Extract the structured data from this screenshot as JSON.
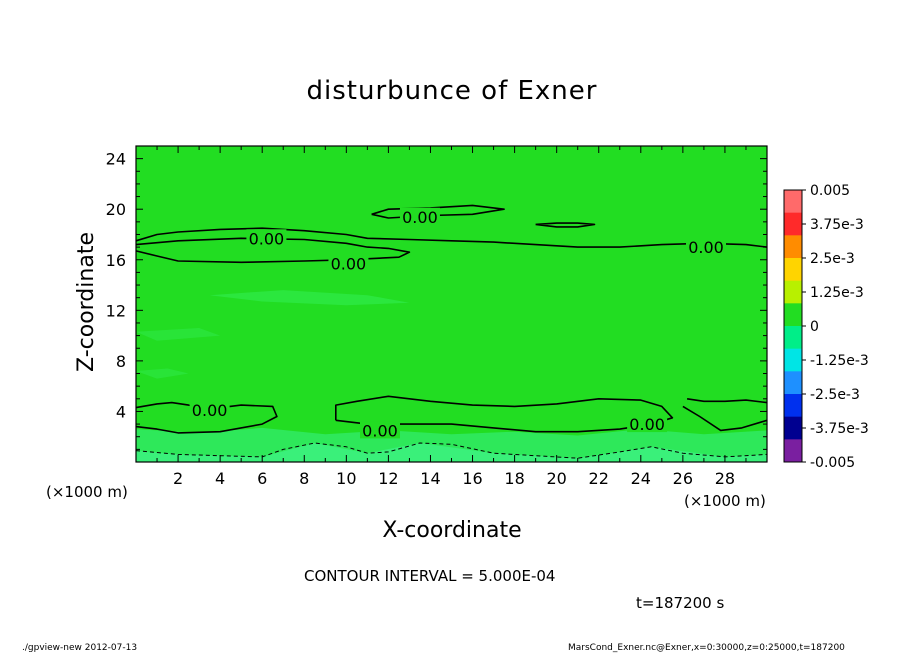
{
  "title": "disturbunce of Exner",
  "contour_interval": "CONTOUR INTERVAL = 5.000E-04",
  "time_label": "t=187200 s",
  "footer_left": "./gpview-new   2012-07-13",
  "footer_right": "MarsCond_Exner.nc@Exner,x=0:30000,z=0:25000,t=187200",
  "colors": {
    "field": "#22dd22",
    "near_zero_negative": "#33ee55",
    "lower_band": "#2ee85a",
    "bottom_band": "#3af07a",
    "contour_line": "#000000"
  },
  "chart_data": {
    "type": "contour",
    "xlabel": "X-coordinate",
    "ylabel": "Z-coordinate",
    "x_unit_left": "(×1000 m)",
    "x_unit_right": "(×1000 m)",
    "xlim": [
      0,
      30
    ],
    "ylim": [
      0,
      25
    ],
    "x_ticks": [
      "2",
      "4",
      "6",
      "8",
      "10",
      "12",
      "14",
      "16",
      "18",
      "20",
      "22",
      "24",
      "26",
      "28"
    ],
    "y_ticks": [
      "4",
      "8",
      "12",
      "16",
      "20",
      "24"
    ],
    "colorbar": {
      "labels": [
        "0.005",
        "3.75e-3",
        "2.5e-3",
        "1.25e-3",
        "0",
        "-1.25e-3",
        "-2.5e-3",
        "-3.75e-3",
        "-0.005"
      ],
      "colors": [
        "#ff6a6a",
        "#ff2a2a",
        "#ff8c00",
        "#ffd400",
        "#b8f000",
        "#22dd22",
        "#00ee88",
        "#00e5e5",
        "#1e90ff",
        "#0030ee",
        "#000090",
        "#7a1fa0"
      ]
    },
    "contour_labels": [
      {
        "text": "0.00",
        "x": 6.2,
        "z": 17.7
      },
      {
        "text": "0.00",
        "x": 13.5,
        "z": 19.4
      },
      {
        "text": "0.00",
        "x": 10.1,
        "z": 15.7
      },
      {
        "text": "0.00",
        "x": 27.1,
        "z": 17.0
      },
      {
        "text": "0.00",
        "x": 3.5,
        "z": 4.1
      },
      {
        "text": "0.00",
        "x": 11.6,
        "z": 2.5
      },
      {
        "text": "0.00",
        "x": 24.3,
        "z": 3.0
      }
    ],
    "contours": [
      {
        "style": "solid",
        "points": [
          [
            0,
            17.5
          ],
          [
            1,
            18.0
          ],
          [
            2,
            18.2
          ],
          [
            4,
            18.4
          ],
          [
            6,
            18.5
          ],
          [
            8,
            18.3
          ],
          [
            10,
            18.0
          ],
          [
            11,
            17.7
          ],
          [
            13,
            17.6
          ],
          [
            15,
            17.5
          ],
          [
            17,
            17.4
          ],
          [
            19,
            17.2
          ],
          [
            21,
            17.0
          ],
          [
            23,
            17.0
          ],
          [
            25,
            17.2
          ],
          [
            27,
            17.3
          ],
          [
            29,
            17.2
          ],
          [
            30,
            17.0
          ]
        ]
      },
      {
        "style": "solid",
        "points": [
          [
            0,
            17.2
          ],
          [
            2,
            17.5
          ],
          [
            5,
            17.7
          ],
          [
            8,
            17.6
          ],
          [
            10,
            17.3
          ],
          [
            11,
            17.0
          ],
          [
            12,
            16.9
          ],
          [
            13,
            16.6
          ],
          [
            12.5,
            16.2
          ],
          [
            10,
            16.0
          ],
          [
            8,
            15.9
          ],
          [
            5,
            15.8
          ],
          [
            2,
            15.9
          ],
          [
            1,
            16.3
          ],
          [
            0,
            16.7
          ]
        ]
      },
      {
        "style": "solid",
        "points": [
          [
            11.2,
            19.6
          ],
          [
            12,
            20.0
          ],
          [
            14,
            20.1
          ],
          [
            16,
            20.3
          ],
          [
            17.5,
            20.0
          ],
          [
            16,
            19.6
          ],
          [
            14,
            19.5
          ],
          [
            12,
            19.3
          ],
          [
            11.2,
            19.6
          ]
        ]
      },
      {
        "style": "solid",
        "points": [
          [
            19,
            18.8
          ],
          [
            20,
            18.9
          ],
          [
            21,
            18.9
          ],
          [
            21.8,
            18.8
          ],
          [
            21,
            18.6
          ],
          [
            20,
            18.6
          ],
          [
            19,
            18.8
          ]
        ]
      },
      {
        "style": "solid",
        "points": [
          [
            0,
            4.3
          ],
          [
            1,
            4.6
          ],
          [
            1.7,
            4.7
          ],
          [
            2.5,
            4.5
          ],
          [
            3.5,
            4.2
          ],
          [
            5,
            4.5
          ],
          [
            6.5,
            4.4
          ],
          [
            6.7,
            3.6
          ],
          [
            6,
            3.0
          ],
          [
            4,
            2.4
          ],
          [
            2,
            2.3
          ],
          [
            1,
            2.6
          ],
          [
            0,
            2.8
          ]
        ]
      },
      {
        "style": "solid",
        "points": [
          [
            9.5,
            3.3
          ],
          [
            9.5,
            4.5
          ],
          [
            10.5,
            4.8
          ],
          [
            12,
            5.2
          ],
          [
            14,
            4.8
          ],
          [
            16,
            4.5
          ],
          [
            18,
            4.4
          ],
          [
            20,
            4.6
          ],
          [
            22,
            5.0
          ],
          [
            24,
            4.9
          ],
          [
            25,
            4.4
          ],
          [
            25.5,
            3.5
          ],
          [
            24.5,
            3.0
          ],
          [
            23,
            2.6
          ],
          [
            21,
            2.4
          ],
          [
            19,
            2.4
          ],
          [
            17,
            2.7
          ],
          [
            15,
            3.0
          ],
          [
            13,
            3.0
          ],
          [
            11,
            3.0
          ],
          [
            9.5,
            3.3
          ]
        ]
      },
      {
        "style": "solid",
        "points": [
          [
            26.2,
            5.0
          ],
          [
            27,
            4.8
          ],
          [
            28,
            4.8
          ],
          [
            29,
            4.9
          ],
          [
            30,
            4.7
          ]
        ]
      },
      {
        "style": "solid",
        "points": [
          [
            26,
            4.4
          ],
          [
            26.8,
            3.6
          ],
          [
            27.8,
            2.5
          ],
          [
            28.8,
            2.7
          ],
          [
            30,
            3.3
          ]
        ]
      },
      {
        "style": "dashed",
        "points": [
          [
            0,
            0.9
          ],
          [
            2,
            0.6
          ],
          [
            4,
            0.5
          ],
          [
            6,
            0.4
          ],
          [
            7,
            1.0
          ],
          [
            8.5,
            1.5
          ],
          [
            10,
            1.2
          ],
          [
            11,
            0.7
          ],
          [
            12,
            0.8
          ],
          [
            13.5,
            1.5
          ],
          [
            15,
            1.4
          ],
          [
            17,
            0.7
          ],
          [
            19,
            0.5
          ],
          [
            21,
            0.3
          ],
          [
            23,
            0.8
          ],
          [
            24.5,
            1.2
          ],
          [
            26,
            0.7
          ],
          [
            28,
            0.4
          ],
          [
            30,
            0.6
          ]
        ]
      }
    ]
  }
}
